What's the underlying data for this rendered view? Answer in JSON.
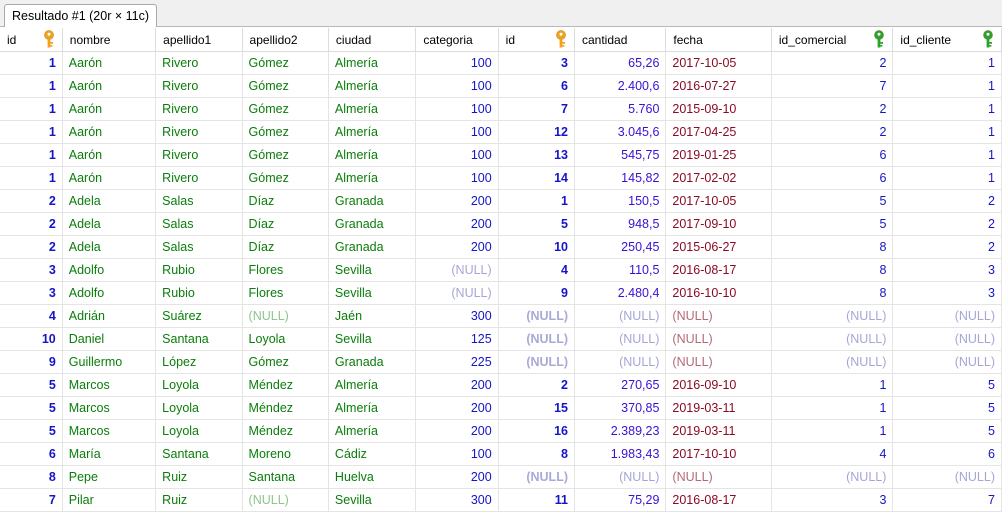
{
  "tab": {
    "label": "Resultado #1 (20r × 11c)"
  },
  "columns": [
    {
      "label": "id",
      "key": "orange"
    },
    {
      "label": "nombre"
    },
    {
      "label": "apellido1"
    },
    {
      "label": "apellido2"
    },
    {
      "label": "ciudad"
    },
    {
      "label": "categoria"
    },
    {
      "label": "id",
      "key": "orange"
    },
    {
      "label": "cantidad"
    },
    {
      "label": "fecha"
    },
    {
      "label": "id_comercial",
      "key": "green"
    },
    {
      "label": "id_cliente",
      "key": "green"
    }
  ],
  "colors": {
    "key_orange": "#f2a21a",
    "key_green": "#2ca12c"
  },
  "null_text": "(NULL)",
  "rows": [
    [
      "1",
      "Aarón",
      "Rivero",
      "Gómez",
      "Almería",
      "100",
      "3",
      "65,26",
      "2017-10-05",
      "2",
      "1"
    ],
    [
      "1",
      "Aarón",
      "Rivero",
      "Gómez",
      "Almería",
      "100",
      "6",
      "2.400,6",
      "2016-07-27",
      "7",
      "1"
    ],
    [
      "1",
      "Aarón",
      "Rivero",
      "Gómez",
      "Almería",
      "100",
      "7",
      "5.760",
      "2015-09-10",
      "2",
      "1"
    ],
    [
      "1",
      "Aarón",
      "Rivero",
      "Gómez",
      "Almería",
      "100",
      "12",
      "3.045,6",
      "2017-04-25",
      "2",
      "1"
    ],
    [
      "1",
      "Aarón",
      "Rivero",
      "Gómez",
      "Almería",
      "100",
      "13",
      "545,75",
      "2019-01-25",
      "6",
      "1"
    ],
    [
      "1",
      "Aarón",
      "Rivero",
      "Gómez",
      "Almería",
      "100",
      "14",
      "145,82",
      "2017-02-02",
      "6",
      "1"
    ],
    [
      "2",
      "Adela",
      "Salas",
      "Díaz",
      "Granada",
      "200",
      "1",
      "150,5",
      "2017-10-05",
      "5",
      "2"
    ],
    [
      "2",
      "Adela",
      "Salas",
      "Díaz",
      "Granada",
      "200",
      "5",
      "948,5",
      "2017-09-10",
      "5",
      "2"
    ],
    [
      "2",
      "Adela",
      "Salas",
      "Díaz",
      "Granada",
      "200",
      "10",
      "250,45",
      "2015-06-27",
      "8",
      "2"
    ],
    [
      "3",
      "Adolfo",
      "Rubio",
      "Flores",
      "Sevilla",
      null,
      "4",
      "110,5",
      "2016-08-17",
      "8",
      "3"
    ],
    [
      "3",
      "Adolfo",
      "Rubio",
      "Flores",
      "Sevilla",
      null,
      "9",
      "2.480,4",
      "2016-10-10",
      "8",
      "3"
    ],
    [
      "4",
      "Adrián",
      "Suárez",
      null,
      "Jaén",
      "300",
      null,
      null,
      null,
      null,
      null
    ],
    [
      "10",
      "Daniel",
      "Santana",
      "Loyola",
      "Sevilla",
      "125",
      null,
      null,
      null,
      null,
      null
    ],
    [
      "9",
      "Guillermo",
      "López",
      "Gómez",
      "Granada",
      "225",
      null,
      null,
      null,
      null,
      null
    ],
    [
      "5",
      "Marcos",
      "Loyola",
      "Méndez",
      "Almería",
      "200",
      "2",
      "270,65",
      "2016-09-10",
      "1",
      "5"
    ],
    [
      "5",
      "Marcos",
      "Loyola",
      "Méndez",
      "Almería",
      "200",
      "15",
      "370,85",
      "2019-03-11",
      "1",
      "5"
    ],
    [
      "5",
      "Marcos",
      "Loyola",
      "Méndez",
      "Almería",
      "200",
      "16",
      "2.389,23",
      "2019-03-11",
      "1",
      "5"
    ],
    [
      "6",
      "María",
      "Santana",
      "Moreno",
      "Cádiz",
      "100",
      "8",
      "1.983,43",
      "2017-10-10",
      "4",
      "6"
    ],
    [
      "8",
      "Pepe",
      "Ruiz",
      "Santana",
      "Huelva",
      "200",
      null,
      null,
      null,
      null,
      null
    ],
    [
      "7",
      "Pilar",
      "Ruiz",
      null,
      "Sevilla",
      "300",
      "11",
      "75,29",
      "2016-08-17",
      "3",
      "7"
    ]
  ]
}
